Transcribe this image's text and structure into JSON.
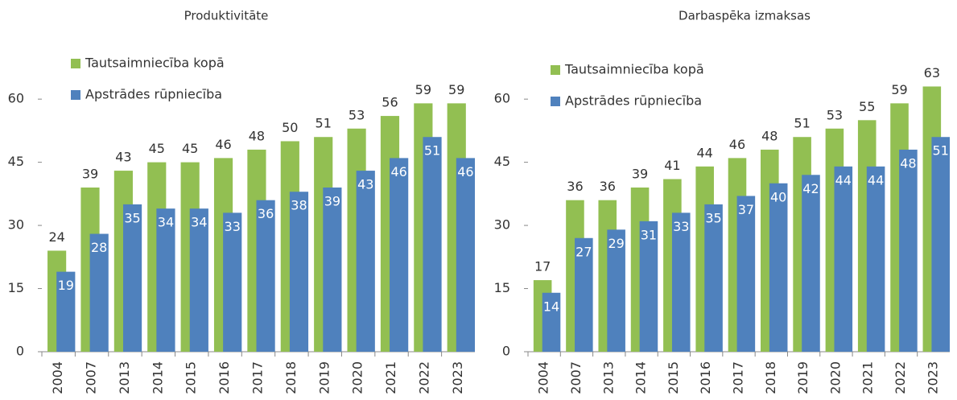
{
  "chart_data": [
    {
      "type": "bar",
      "title": "Produktivitāte",
      "categories": [
        "2004",
        "2007",
        "2013",
        "2014",
        "2015",
        "2016",
        "2017",
        "2018",
        "2019",
        "2020",
        "2021",
        "2022",
        "2023"
      ],
      "series": [
        {
          "name": "Tautsaimniecība kopā",
          "color": "#92bf52",
          "values": [
            24,
            39,
            43,
            45,
            45,
            46,
            48,
            50,
            51,
            53,
            56,
            59,
            59
          ]
        },
        {
          "name": "Apstrādes rūpniecība",
          "color": "#4f81bd",
          "values": [
            19,
            28,
            35,
            34,
            34,
            33,
            36,
            38,
            39,
            43,
            46,
            51,
            46
          ]
        }
      ],
      "ylim": [
        0,
        65
      ],
      "yticks": [
        0,
        15,
        30,
        45,
        60
      ],
      "legend": "upper left"
    },
    {
      "type": "bar",
      "title": "Darbaspēka izmaksas",
      "categories": [
        "2004",
        "2007",
        "2013",
        "2014",
        "2015",
        "2016",
        "2017",
        "2018",
        "2019",
        "2020",
        "2021",
        "2022",
        "2023"
      ],
      "series": [
        {
          "name": "Tautsaimniecība kopā",
          "color": "#92bf52",
          "values": [
            17,
            36,
            36,
            39,
            41,
            44,
            46,
            48,
            51,
            53,
            55,
            59,
            63
          ]
        },
        {
          "name": "Apstrādes rūpniecība",
          "color": "#4f81bd",
          "values": [
            14,
            27,
            29,
            31,
            33,
            35,
            37,
            40,
            42,
            44,
            44,
            48,
            51
          ]
        }
      ],
      "ylim": [
        0,
        65
      ],
      "yticks": [
        0,
        15,
        30,
        45,
        60
      ],
      "legend": "upper left"
    }
  ]
}
